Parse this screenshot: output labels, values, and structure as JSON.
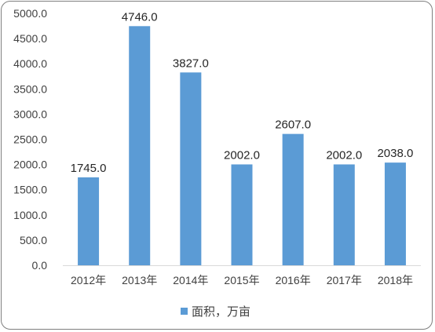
{
  "chart_data": {
    "type": "bar",
    "categories": [
      "2012年",
      "2013年",
      "2014年",
      "2015年",
      "2016年",
      "2017年",
      "2018年"
    ],
    "series": [
      {
        "name": "面积，万亩",
        "values": [
          1745.0,
          4746.0,
          3827.0,
          2002.0,
          2607.0,
          2002.0,
          2038.0
        ],
        "labels": [
          "1745.0",
          "4746.0",
          "3827.0",
          "2002.0",
          "2607.0",
          "2002.0",
          "2038.0"
        ]
      }
    ],
    "title": "",
    "xlabel": "",
    "ylabel": "",
    "ylim": [
      0,
      5000
    ],
    "yticks": [
      0,
      500,
      1000,
      1500,
      2000,
      2500,
      3000,
      3500,
      4000,
      4500,
      5000
    ],
    "ytick_labels": [
      "0.0",
      "500.0",
      "1000.0",
      "1500.0",
      "2000.0",
      "2500.0",
      "3000.0",
      "3500.0",
      "4000.0",
      "4500.0",
      "5000.0"
    ],
    "grid": false,
    "legend": "bottom",
    "colors": {
      "bar": "#5b9bd5",
      "axis": "#d9d9d9",
      "frame": "#7f7f7f"
    }
  }
}
